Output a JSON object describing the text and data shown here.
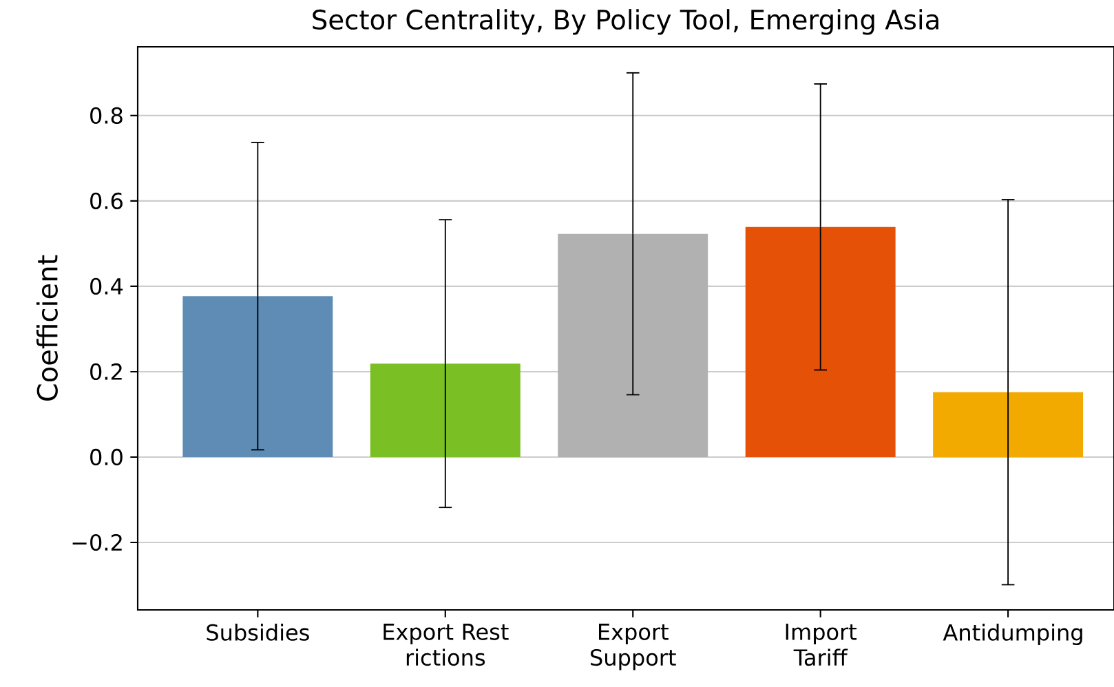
{
  "chart_data": {
    "type": "bar",
    "title": "Sector Centrality, By Policy Tool, Emerging Asia",
    "ylabel": "Coefficient",
    "categories": [
      "Subsidies",
      "Export Rest rictions",
      "Export Support",
      "Import Tariff",
      "Antidumping"
    ],
    "values": [
      0.377,
      0.219,
      0.523,
      0.539,
      0.152
    ],
    "errors": [
      0.36,
      0.337,
      0.377,
      0.335,
      0.451
    ],
    "colors": [
      "#5f8cb5",
      "#7abf24",
      "#b0b1b0",
      "#e55207",
      "#f2a900"
    ],
    "ylim": [
      -0.358,
      0.961
    ],
    "yticks": [
      {
        "value": -0.2,
        "label": "−0.2"
      },
      {
        "value": 0.0,
        "label": "0.0"
      },
      {
        "value": 0.2,
        "label": "0.2"
      },
      {
        "value": 0.4,
        "label": "0.4"
      },
      {
        "value": 0.6,
        "label": "0.6"
      },
      {
        "value": 0.8,
        "label": "0.8"
      }
    ],
    "grid": "y"
  }
}
